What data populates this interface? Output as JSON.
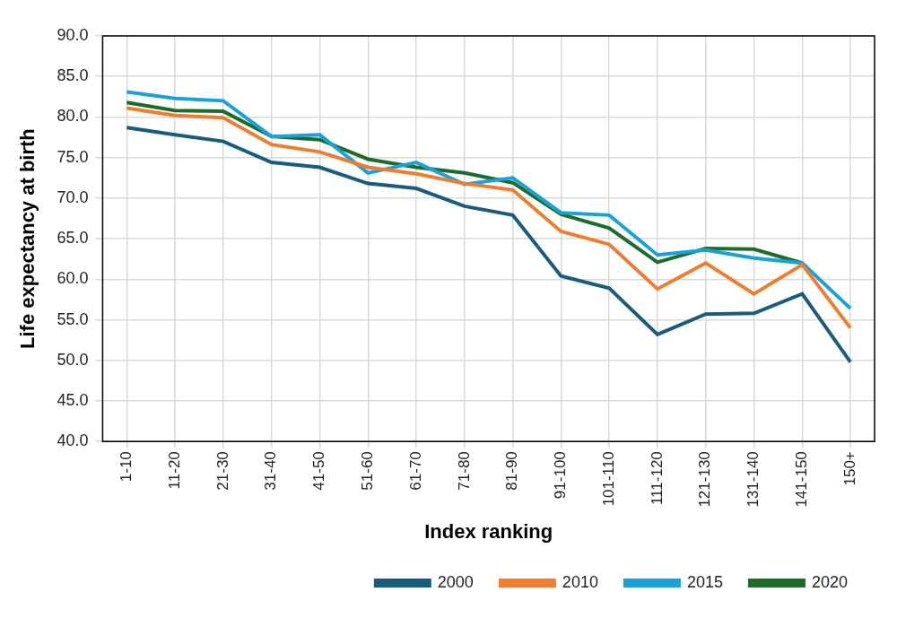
{
  "chart_data": {
    "type": "line",
    "xlabel": "Index ranking",
    "ylabel": "Life expectancy at birth",
    "categories": [
      "1-10",
      "11-20",
      "21-30",
      "31-40",
      "41-50",
      "51-60",
      "61-70",
      "71-80",
      "81-90",
      "91-100",
      "101-110",
      "111-120",
      "121-130",
      "131-140",
      "141-150",
      "150+"
    ],
    "series": [
      {
        "name": "2000",
        "color": "#1b5b7c",
        "values": [
          78.7,
          77.8,
          77.0,
          74.4,
          73.8,
          71.8,
          71.2,
          69.0,
          67.9,
          60.4,
          58.9,
          53.2,
          55.7,
          55.8,
          58.2,
          49.8
        ]
      },
      {
        "name": "2010",
        "color": "#ed7d31",
        "values": [
          81.1,
          80.2,
          79.9,
          76.6,
          75.7,
          73.8,
          73.0,
          71.8,
          71.0,
          65.9,
          64.3,
          58.8,
          62.0,
          58.2,
          61.8,
          54.0
        ]
      },
      {
        "name": "2015",
        "color": "#1ba1d8",
        "values": [
          83.1,
          82.3,
          82.0,
          77.6,
          77.8,
          73.1,
          74.4,
          71.7,
          72.5,
          68.2,
          67.9,
          63.0,
          63.6,
          62.6,
          62.0,
          56.4
        ]
      },
      {
        "name": "2020",
        "color": "#1e6b2e",
        "values": [
          81.8,
          80.8,
          80.7,
          77.6,
          77.2,
          74.8,
          73.8,
          73.1,
          71.9,
          68.0,
          66.3,
          62.1,
          63.8,
          63.7,
          62.0,
          null
        ]
      }
    ],
    "ylim": [
      40,
      90
    ],
    "yticks": [
      {
        "value": 40,
        "label": "40.0"
      },
      {
        "value": 45,
        "label": "45.0"
      },
      {
        "value": 50,
        "label": "50.0"
      },
      {
        "value": 55,
        "label": "55.0"
      },
      {
        "value": 60,
        "label": "60.0"
      },
      {
        "value": 65,
        "label": "65.0"
      },
      {
        "value": 70,
        "label": "70.0"
      },
      {
        "value": 75,
        "label": "75.0"
      },
      {
        "value": 80,
        "label": "80.0"
      },
      {
        "value": 85,
        "label": "85.0"
      },
      {
        "value": 90,
        "label": "90.0"
      }
    ],
    "grid": true,
    "legend": "bottom"
  }
}
